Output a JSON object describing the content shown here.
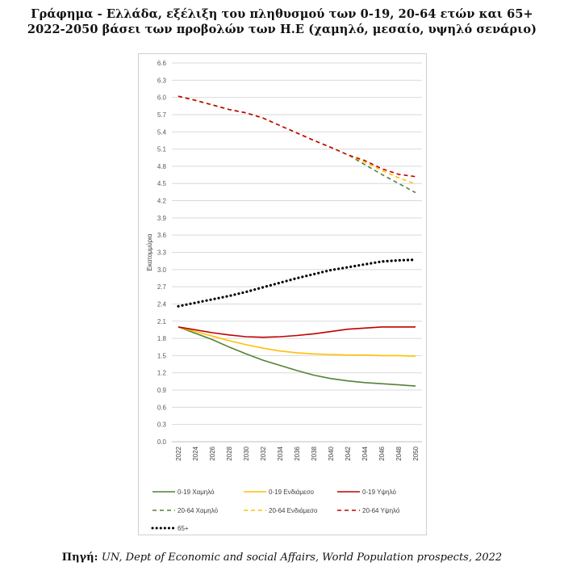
{
  "title_line1": "Γράφημα - Ελλάδα, εξέλιξη του πληθυσμού των 0-19, 20-64 ετών και 65+",
  "title_line2": "2022-2050 βάσει των προβολών των Η.Ε (χαμηλό, μεσαίο, υψηλό σενάριο)",
  "source_label": "Πηγή",
  "source_text": "UN, Dept of Economic and social Affairs, World Population prospects, 2022",
  "chart_data": {
    "type": "line",
    "ylabel": "Εκατομμύρια",
    "ylim": [
      0,
      6.6
    ],
    "yticks": [
      "0.0",
      "0.3",
      "0.6",
      "0.9",
      "1.2",
      "1.5",
      "1.8",
      "2.1",
      "2.4",
      "2.7",
      "3.0",
      "3.3",
      "3.6",
      "3.9",
      "4.2",
      "4.5",
      "4.8",
      "5.1",
      "5.4",
      "5.7",
      "6.0",
      "6.3",
      "6.6"
    ],
    "x": [
      2022,
      2024,
      2026,
      2028,
      2030,
      2032,
      2034,
      2036,
      2038,
      2040,
      2042,
      2044,
      2046,
      2048,
      2050
    ],
    "grid": true,
    "series": [
      {
        "name": "0-19 Χαμηλό",
        "color": "#548235",
        "dash": "solid",
        "values": [
          2.0,
          1.89,
          1.78,
          1.65,
          1.53,
          1.42,
          1.33,
          1.24,
          1.16,
          1.1,
          1.06,
          1.03,
          1.01,
          0.99,
          0.97
        ]
      },
      {
        "name": "0-19 Ενδιάμεσο",
        "color": "#ffc000",
        "dash": "solid",
        "values": [
          2.0,
          1.92,
          1.84,
          1.76,
          1.69,
          1.63,
          1.58,
          1.55,
          1.53,
          1.52,
          1.51,
          1.51,
          1.5,
          1.5,
          1.49
        ]
      },
      {
        "name": "0-19 Υψηλό",
        "color": "#c00000",
        "dash": "solid",
        "values": [
          2.0,
          1.95,
          1.9,
          1.86,
          1.83,
          1.82,
          1.83,
          1.85,
          1.88,
          1.92,
          1.96,
          1.98,
          2.0,
          2.0,
          2.0
        ]
      },
      {
        "name": "20-64 Χαμηλό",
        "color": "#548235",
        "dash": "dashed",
        "values": [
          6.02,
          5.95,
          5.87,
          5.79,
          5.73,
          5.64,
          5.51,
          5.38,
          5.25,
          5.13,
          5.0,
          4.83,
          4.66,
          4.5,
          4.34
        ]
      },
      {
        "name": "20-64 Ενδιάμεσο",
        "color": "#ffc000",
        "dash": "dashed",
        "values": [
          6.02,
          5.95,
          5.87,
          5.79,
          5.73,
          5.64,
          5.51,
          5.38,
          5.25,
          5.13,
          5.0,
          4.87,
          4.73,
          4.6,
          4.49
        ]
      },
      {
        "name": "20-64 Υψηλό",
        "color": "#c00000",
        "dash": "dashed",
        "values": [
          6.02,
          5.95,
          5.87,
          5.79,
          5.73,
          5.64,
          5.51,
          5.38,
          5.25,
          5.13,
          5.0,
          4.9,
          4.76,
          4.66,
          4.62
        ]
      },
      {
        "name": "65+",
        "color": "#000000",
        "dash": "dotted",
        "values": [
          2.36,
          2.42,
          2.48,
          2.54,
          2.61,
          2.69,
          2.77,
          2.85,
          2.92,
          2.99,
          3.04,
          3.09,
          3.14,
          3.16,
          3.17
        ]
      }
    ],
    "legend_position": "bottom"
  }
}
